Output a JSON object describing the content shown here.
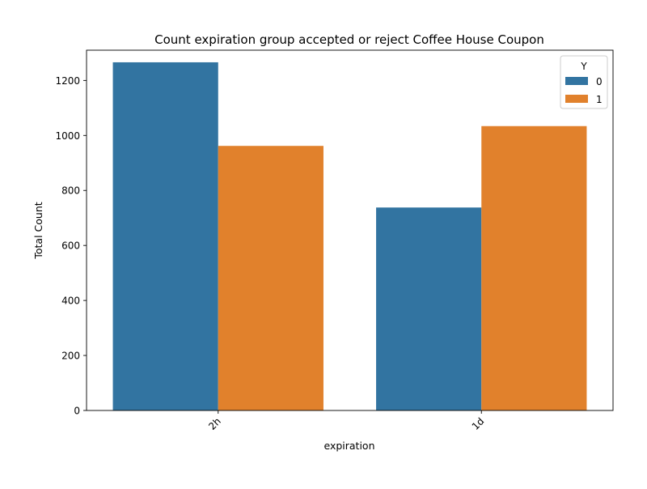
{
  "chart_data": {
    "type": "bar",
    "title": "Count expiration group accepted or reject Coffee House Coupon",
    "xlabel": "expiration",
    "ylabel": "Total Count",
    "categories": [
      "2h",
      "1d"
    ],
    "series": [
      {
        "name": "0",
        "values": [
          1266,
          738
        ],
        "color": "#3274a1"
      },
      {
        "name": "1",
        "values": [
          962,
          1034
        ],
        "color": "#e1812c"
      }
    ],
    "ylim": [
      0,
      1310
    ],
    "yticks": [
      0,
      200,
      400,
      600,
      800,
      1000,
      1200
    ],
    "legend": {
      "title": "Y",
      "position": "top-right"
    },
    "grid": false
  }
}
